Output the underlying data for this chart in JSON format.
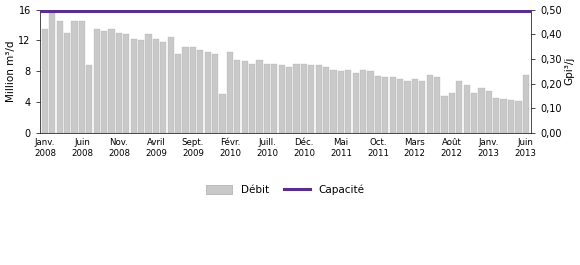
{
  "bar_values": [
    13.5,
    15.5,
    14.5,
    13.0,
    14.5,
    14.5,
    8.8,
    13.5,
    13.2,
    13.5,
    13.0,
    12.8,
    12.2,
    12.1,
    12.8,
    12.2,
    11.8,
    12.5,
    10.2,
    11.2,
    11.1,
    10.7,
    10.5,
    10.2,
    5.0,
    10.5,
    9.5,
    9.3,
    9.0,
    9.5,
    9.0,
    9.0,
    8.8,
    8.5,
    9.0,
    8.9,
    8.8,
    8.8,
    8.5,
    8.2,
    8.0,
    8.2,
    7.8,
    8.2,
    8.0,
    7.4,
    7.2,
    7.2,
    7.0,
    6.8,
    7.0,
    6.8,
    7.5,
    7.2,
    4.8,
    5.2,
    6.8,
    6.2,
    5.2,
    5.8,
    5.5,
    4.5,
    4.4,
    4.3,
    4.2,
    7.5
  ],
  "x_tick_labels": [
    "Janv.\n2008",
    "Juin\n2008",
    "Nov.\n2008",
    "Avril\n2009",
    "Sept.\n2009",
    "Févr.\n2010",
    "Juill.\n2010",
    "Déc.\n2010",
    "Mai\n2011",
    "Oct.\n2011",
    "Mars\n2012",
    "Août\n2012",
    "Janv.\n2013",
    "Juin\n2013"
  ],
  "x_tick_positions": [
    0,
    5,
    10,
    15,
    20,
    25,
    30,
    35,
    40,
    45,
    50,
    55,
    60,
    65
  ],
  "capacity_value": 15.8,
  "ylim": [
    0,
    16
  ],
  "y_ticks_left": [
    0,
    4,
    8,
    12,
    16
  ],
  "y_ticks_right_vals": [
    0.0,
    0.1,
    0.2,
    0.3,
    0.4,
    0.5
  ],
  "y_ticks_right_pos": [
    0.0,
    3.2,
    6.4,
    9.6,
    12.8,
    16.0
  ],
  "ylabel_left": "Million m³/d",
  "ylabel_right": "Gpi³/j",
  "bar_color": "#c9c9c9",
  "bar_edgecolor": "#aaaaaa",
  "capacity_color": "#5b2d8e",
  "legend_debit": "Débit",
  "legend_capacite": "Capacité",
  "background_color": "#ffffff"
}
